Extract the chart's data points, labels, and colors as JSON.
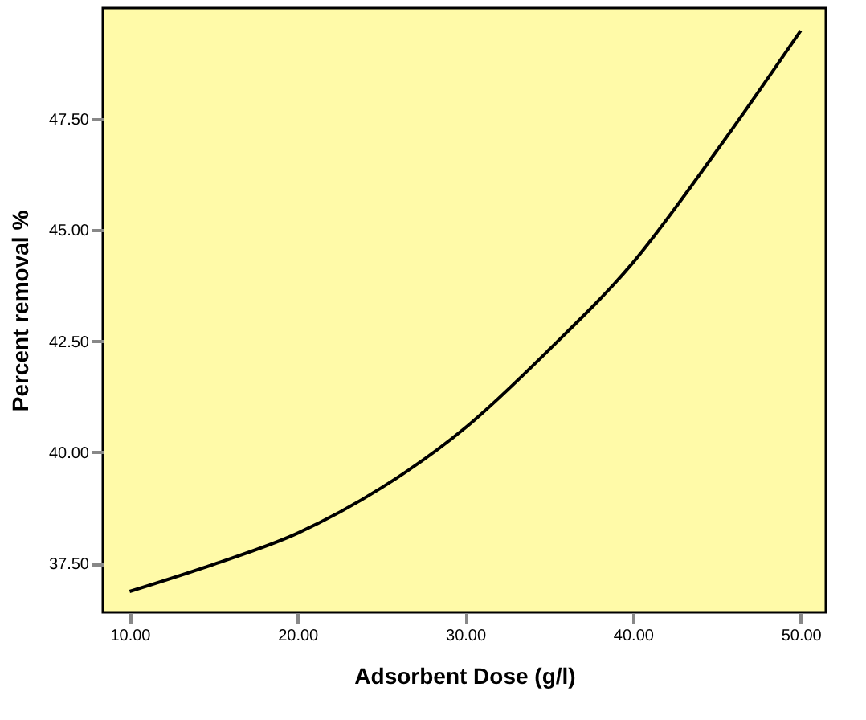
{
  "chart_data": {
    "type": "line",
    "xlabel": "Adsorbent Dose (g/l)",
    "ylabel": "Percent removal %",
    "x": [
      10,
      15,
      20,
      25,
      30,
      35,
      40,
      45,
      50
    ],
    "series": [
      {
        "color": "#000000",
        "values": [
          36.87,
          37.48,
          38.18,
          39.2,
          40.55,
          42.31,
          44.27,
          46.79,
          49.49
        ]
      }
    ],
    "xlim": [
      8.4,
      51.5
    ],
    "ylim": [
      36.4,
      50
    ],
    "xticks": [
      {
        "value": 10,
        "label": "10.00"
      },
      {
        "value": 20,
        "label": "20.00"
      },
      {
        "value": 30,
        "label": "30.00"
      },
      {
        "value": 40,
        "label": "40.00"
      },
      {
        "value": 50,
        "label": "50.00"
      }
    ],
    "yticks": [
      {
        "value": 37.5,
        "label": "37.50"
      },
      {
        "value": 40,
        "label": "40.00"
      },
      {
        "value": 42.5,
        "label": "42.50"
      },
      {
        "value": 45,
        "label": "45.00"
      },
      {
        "value": 47.5,
        "label": "47.50"
      }
    ],
    "grid": false,
    "marker": "none",
    "line_style": "solid"
  }
}
